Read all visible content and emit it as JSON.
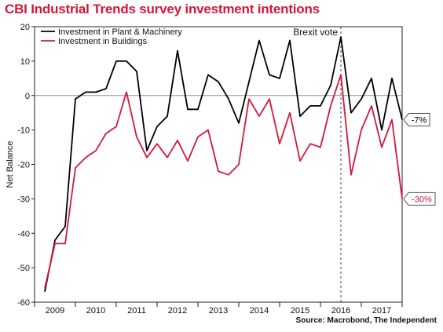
{
  "title": "CBI Industrial Trends survey investment intentions",
  "source": "Source: Macrobond, The Independent",
  "chart_data": {
    "type": "line",
    "title": "CBI Industrial Trends survey investment intentions",
    "ylabel": "Net Balance",
    "xlabel": "",
    "ylim": [
      -60,
      20
    ],
    "yticks": [
      20,
      10,
      0,
      -10,
      -20,
      -30,
      -40,
      -50,
      -60
    ],
    "xlim": [
      2008.5,
      2017.5
    ],
    "year_labels": [
      "2009",
      "2010",
      "2011",
      "2012",
      "2013",
      "2014",
      "2015",
      "2016",
      "2017"
    ],
    "grid": false,
    "legend_position": "top-left",
    "annotation": {
      "text": "Brexit vote",
      "x": 2016.0
    },
    "series": [
      {
        "name": "Investment in Plant & Machinery",
        "color": "#000000",
        "end_label": "-7%",
        "x": [
          2008.75,
          2009.0,
          2009.25,
          2009.5,
          2009.75,
          2010.0,
          2010.25,
          2010.5,
          2010.75,
          2011.0,
          2011.25,
          2011.5,
          2011.75,
          2012.0,
          2012.25,
          2012.5,
          2012.75,
          2013.0,
          2013.25,
          2013.5,
          2013.75,
          2014.0,
          2014.25,
          2014.5,
          2014.75,
          2015.0,
          2015.25,
          2015.5,
          2015.75,
          2016.0,
          2016.25,
          2016.5,
          2016.75,
          2017.0,
          2017.25,
          2017.5
        ],
        "y": [
          -57,
          -42,
          -38,
          -1,
          1,
          1,
          2,
          10,
          10,
          7,
          -16,
          -9,
          -6,
          13,
          -4,
          -4,
          6,
          4,
          -1,
          -8,
          4,
          16,
          6,
          5,
          16,
          -6,
          -3,
          -3,
          3,
          17,
          -5,
          -1,
          5,
          -10,
          5,
          -7
        ]
      },
      {
        "name": "Investment in Buildings",
        "color": "#d4173a",
        "end_label": "-30%",
        "x": [
          2008.75,
          2009.0,
          2009.25,
          2009.5,
          2009.75,
          2010.0,
          2010.25,
          2010.5,
          2010.75,
          2011.0,
          2011.25,
          2011.5,
          2011.75,
          2012.0,
          2012.25,
          2012.5,
          2012.75,
          2013.0,
          2013.25,
          2013.5,
          2013.75,
          2014.0,
          2014.25,
          2014.5,
          2014.75,
          2015.0,
          2015.25,
          2015.5,
          2015.75,
          2016.0,
          2016.25,
          2016.5,
          2016.75,
          2017.0,
          2017.25,
          2017.5
        ],
        "y": [
          -56,
          -43,
          -43,
          -21,
          -18,
          -16,
          -11,
          -9,
          1,
          -12,
          -18,
          -14,
          -18,
          -13,
          -19,
          -12,
          -10,
          -22,
          -23,
          -20,
          -1,
          -6,
          -1,
          -14,
          -5,
          -19,
          -14,
          -15,
          -3,
          6,
          -23,
          -10,
          -3,
          -15,
          -7,
          -30
        ]
      }
    ]
  }
}
